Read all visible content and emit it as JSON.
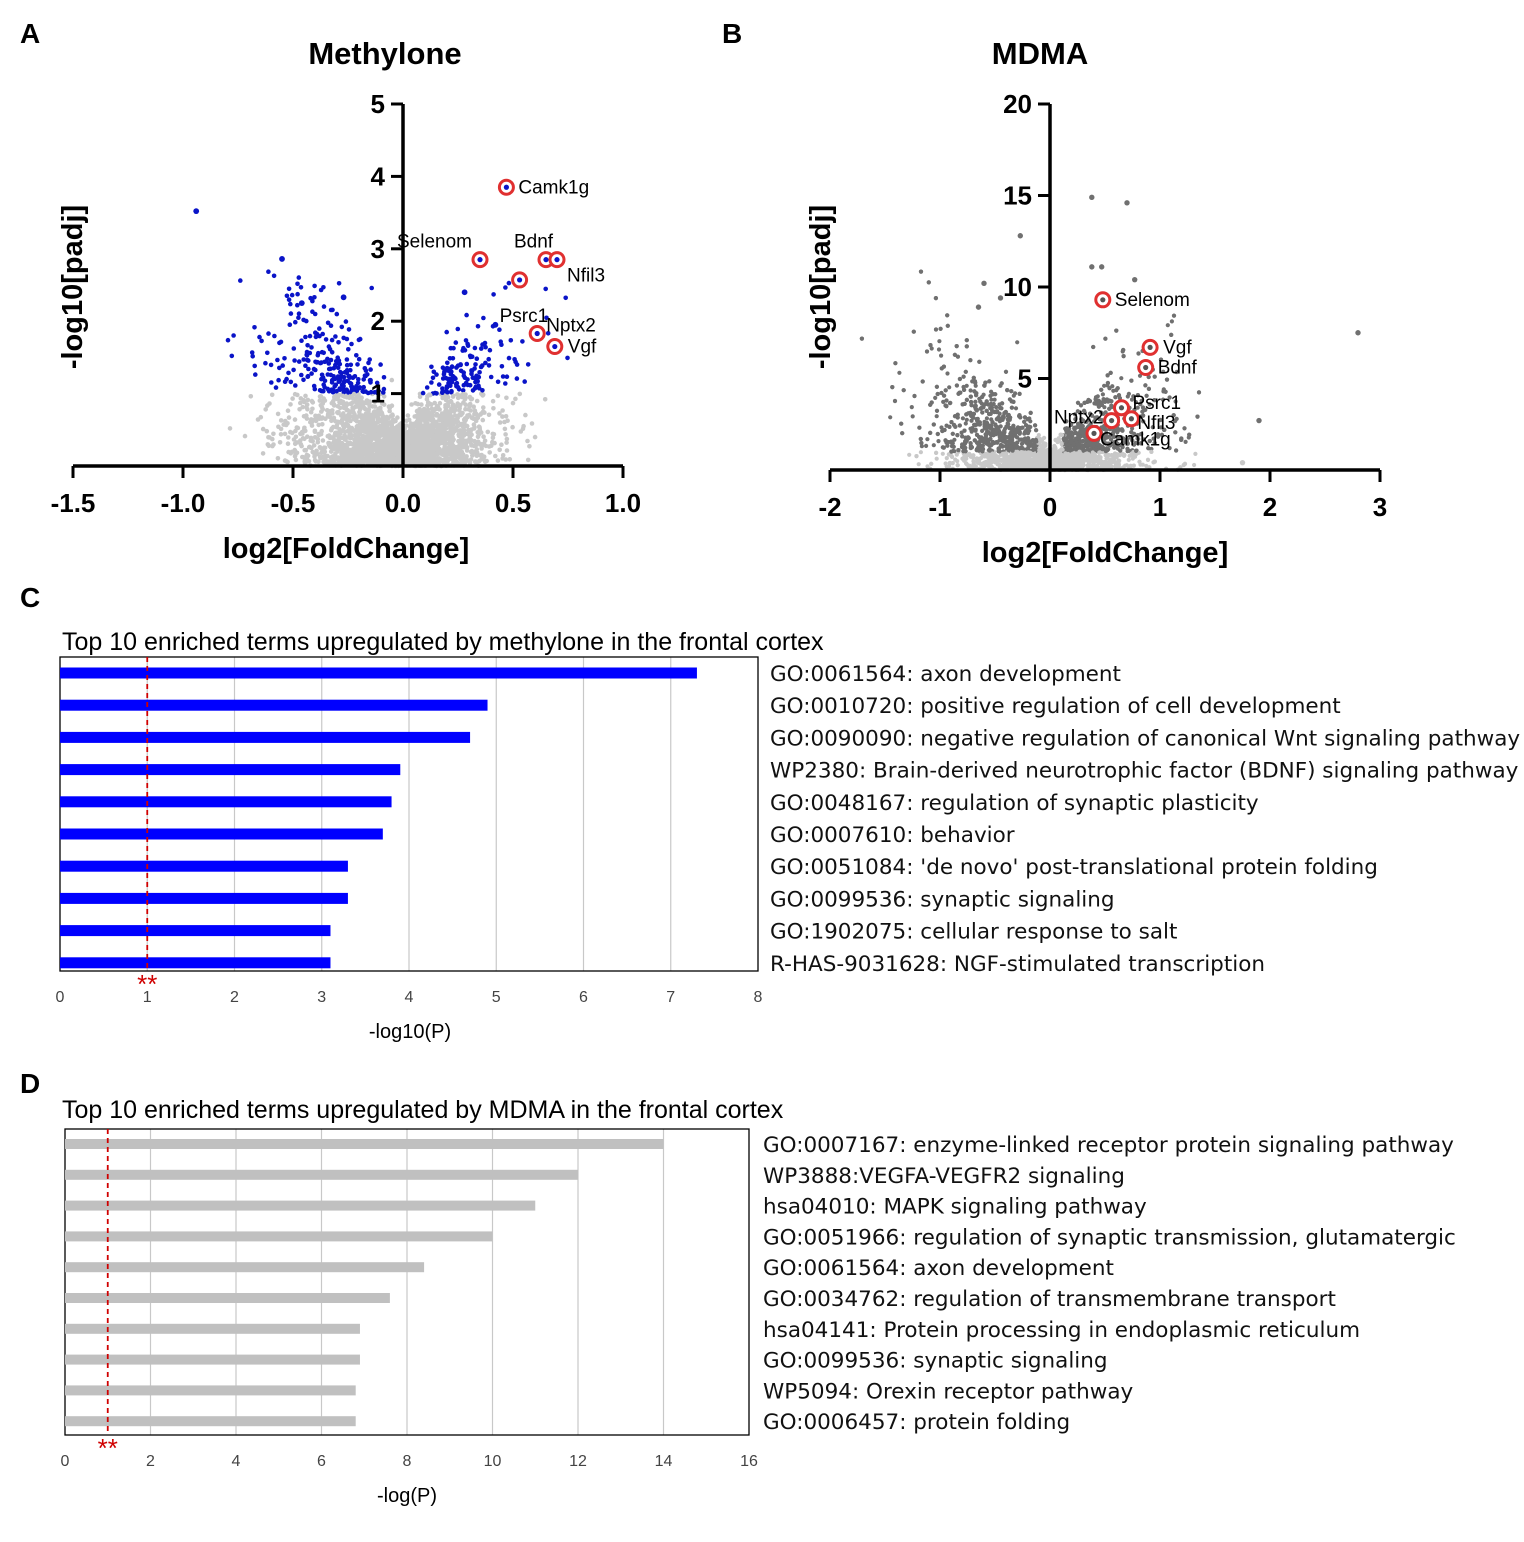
{
  "panels": {
    "a": "A",
    "b": "B",
    "c": "C",
    "d": "D"
  },
  "chart_data": [
    {
      "type": "scatter",
      "panel": "A",
      "title": "Methylone",
      "xlabel": "log2[FoldChange]",
      "ylabel": "-log10[padj]",
      "xlim": [
        -1.5,
        1.0
      ],
      "ylim": [
        0,
        5
      ],
      "xticks": [
        -1.5,
        -1.0,
        -0.5,
        0.0,
        0.5,
        1.0
      ],
      "xtick_labels": [
        "-1.5",
        "-1.0",
        "-0.5",
        "0.0",
        "0.5",
        "1.0"
      ],
      "yticks": [
        1,
        2,
        3,
        4,
        5
      ],
      "ytick_labels": [
        "1",
        "2",
        "3",
        "4",
        "5"
      ],
      "significance_threshold": 1.0,
      "colors": {
        "sig": "#0a14c8",
        "nonsig": "#c8c8c8",
        "highlight": "#e03030"
      },
      "highlighted_genes": [
        {
          "name": "Camk1g",
          "x": 0.47,
          "y": 3.85
        },
        {
          "name": "Selenom",
          "x": 0.35,
          "y": 2.85
        },
        {
          "name": "Bdnf",
          "x": 0.65,
          "y": 2.85
        },
        {
          "name": "Nfil3",
          "x": 0.7,
          "y": 2.85
        },
        {
          "name": "Psrc1",
          "x": 0.53,
          "y": 2.57
        },
        {
          "name": "Nptx2",
          "x": 0.61,
          "y": 1.83
        },
        {
          "name": "Vgf",
          "x": 0.69,
          "y": 1.65
        }
      ],
      "outliers": [
        {
          "x": -0.94,
          "y": 3.52
        },
        {
          "x": -0.55,
          "y": 2.86
        },
        {
          "x": -0.46,
          "y": 2.25
        },
        {
          "x": -0.27,
          "y": 2.33
        },
        {
          "x": 0.28,
          "y": 2.4
        },
        {
          "x": 0.42,
          "y": 1.95
        }
      ]
    },
    {
      "type": "scatter",
      "panel": "B",
      "title": "MDMA",
      "xlabel": "log2[FoldChange]",
      "ylabel": "-log10[padj]",
      "xlim": [
        -2,
        3
      ],
      "ylim": [
        0,
        20
      ],
      "xticks": [
        -2,
        -1,
        0,
        1,
        2,
        3
      ],
      "xtick_labels": [
        "-2",
        "-1",
        "0",
        "1",
        "2",
        "3"
      ],
      "yticks": [
        5,
        10,
        15,
        20
      ],
      "ytick_labels": [
        "5",
        "10",
        "15",
        "20"
      ],
      "significance_threshold": 1.0,
      "colors": {
        "sig": "#707070",
        "nonsig": "#c8c8c8",
        "highlight": "#e03030"
      },
      "highlighted_genes": [
        {
          "name": "Selenom",
          "x": 0.48,
          "y": 9.3
        },
        {
          "name": "Vgf",
          "x": 0.91,
          "y": 6.7
        },
        {
          "name": "Bdnf",
          "x": 0.87,
          "y": 5.6
        },
        {
          "name": "Psrc1",
          "x": 0.65,
          "y": 3.4
        },
        {
          "name": "Nfil3",
          "x": 0.74,
          "y": 2.8
        },
        {
          "name": "Nptx2",
          "x": 0.56,
          "y": 2.7
        },
        {
          "name": "Camk1g",
          "x": 0.4,
          "y": 2.0
        }
      ],
      "outliers": [
        {
          "x": 0.38,
          "y": 14.9
        },
        {
          "x": 0.7,
          "y": 14.6
        },
        {
          "x": -0.27,
          "y": 12.8
        },
        {
          "x": 2.8,
          "y": 7.5
        },
        {
          "x": 1.9,
          "y": 2.7
        },
        {
          "x": 1.75,
          "y": 0.4
        },
        {
          "x": 0.47,
          "y": 11.1
        },
        {
          "x": 0.38,
          "y": 11.1
        },
        {
          "x": 0.77,
          "y": 10.4
        },
        {
          "x": -0.6,
          "y": 10.2
        },
        {
          "x": -0.65,
          "y": 8.9
        },
        {
          "x": -0.45,
          "y": 9.4
        }
      ]
    },
    {
      "type": "bar",
      "panel": "C",
      "orientation": "horizontal",
      "title": "Top 10 enriched terms upregulated by methylone in the frontal cortex",
      "xlabel": "-log10(P)",
      "xlim": [
        0,
        8
      ],
      "xticks": [
        0,
        1,
        2,
        3,
        4,
        5,
        6,
        7,
        8
      ],
      "xtick_labels": [
        "0",
        "1",
        "2",
        "3",
        "4",
        "5",
        "6",
        "7",
        "8"
      ],
      "threshold": 1,
      "threshold_label": "**",
      "bar_color": "#0000ff",
      "categories": [
        "GO:0061564: axon development",
        "GO:0010720: positive regulation of cell development",
        "GO:0090090: negative regulation of canonical Wnt signaling pathway",
        "WP2380: Brain-derived neurotrophic factor (BDNF) signaling pathway",
        "GO:0048167: regulation of synaptic plasticity",
        "GO:0007610: behavior",
        "GO:0051084: 'de novo' post-translational protein folding",
        "GO:0099536: synaptic signaling",
        "GO:1902075: cellular response to salt",
        "R-HAS-9031628: NGF-stimulated transcription"
      ],
      "values": [
        7.3,
        4.9,
        4.7,
        3.9,
        3.8,
        3.7,
        3.3,
        3.3,
        3.1,
        3.1
      ]
    },
    {
      "type": "bar",
      "panel": "D",
      "orientation": "horizontal",
      "title": "Top 10 enriched terms upregulated by MDMA in the frontal cortex",
      "xlabel": "-log(P)",
      "xlim": [
        0,
        16
      ],
      "xticks": [
        0,
        2,
        4,
        6,
        8,
        10,
        12,
        14,
        16
      ],
      "xtick_labels": [
        "0",
        "2",
        "4",
        "6",
        "8",
        "10",
        "12",
        "14",
        "16"
      ],
      "threshold": 1,
      "threshold_label": "**",
      "bar_color": "#c0c0c0",
      "categories": [
        "GO:0007167: enzyme-linked receptor protein signaling pathway",
        "WP3888:VEGFA-VEGFR2 signaling",
        "hsa04010: MAPK signaling pathway",
        "GO:0051966: regulation of synaptic transmission, glutamatergic",
        "GO:0061564: axon development",
        "GO:0034762: regulation of transmembrane transport",
        "hsa04141: Protein processing in endoplasmic reticulum",
        "GO:0099536: synaptic signaling",
        "WP5094: Orexin receptor pathway",
        "GO:0006457: protein folding"
      ],
      "values": [
        14.0,
        12.0,
        11.0,
        10.0,
        8.4,
        7.6,
        6.9,
        6.9,
        6.8,
        6.8
      ]
    }
  ]
}
